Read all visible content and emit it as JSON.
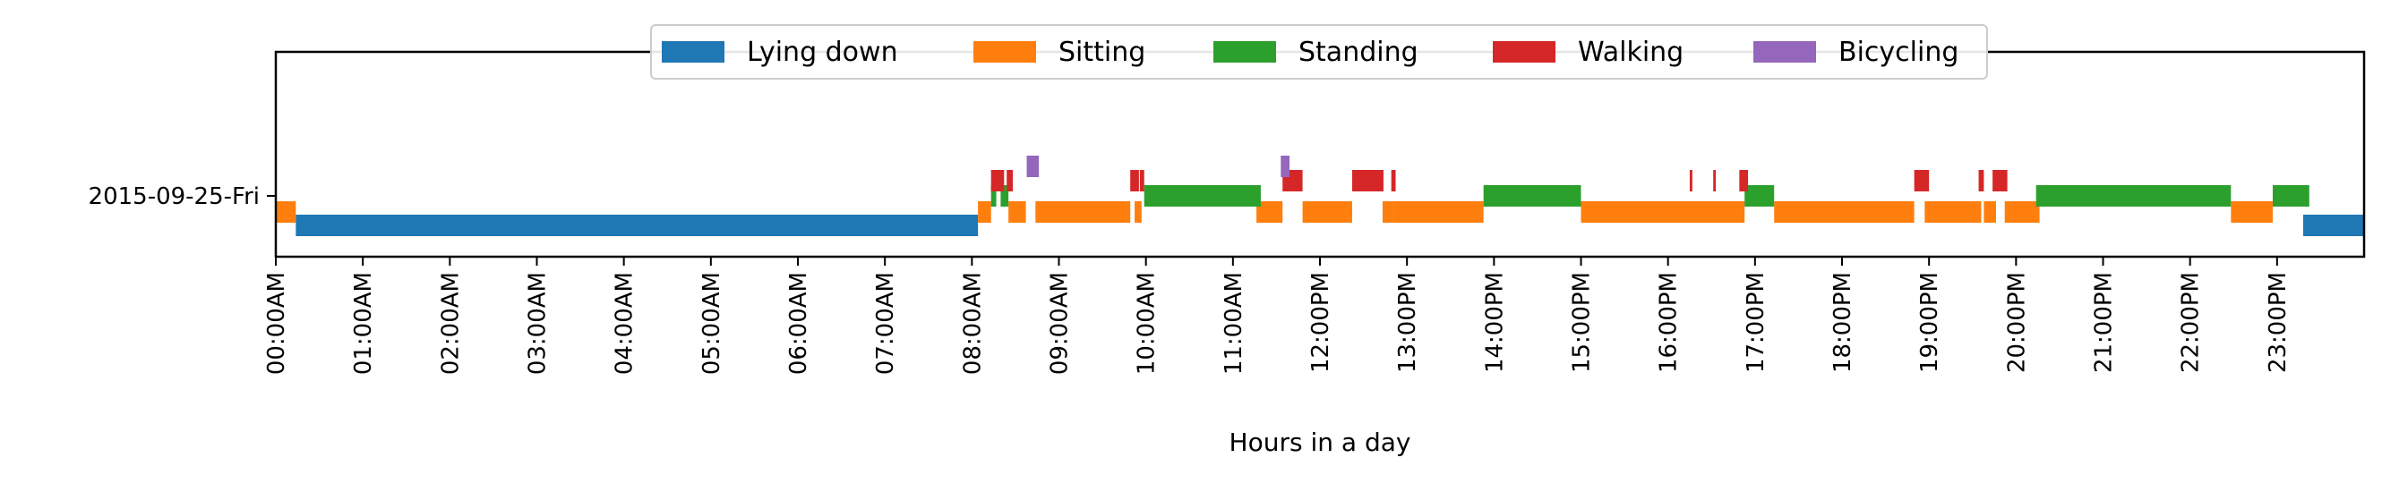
{
  "chart_data": {
    "type": "timeline",
    "xlabel": "Hours in a day",
    "ylabel": "",
    "xlim": [
      0,
      24
    ],
    "row_label": "2015-09-25-Fri",
    "x_ticks": [
      "00:00AM",
      "01:00AM",
      "02:00AM",
      "03:00AM",
      "04:00AM",
      "05:00AM",
      "06:00AM",
      "07:00AM",
      "08:00AM",
      "09:00AM",
      "10:00AM",
      "11:00AM",
      "12:00PM",
      "13:00PM",
      "14:00PM",
      "15:00PM",
      "16:00PM",
      "17:00PM",
      "18:00PM",
      "19:00PM",
      "20:00PM",
      "21:00PM",
      "22:00PM",
      "23:00PM"
    ],
    "legend_position": "top-center",
    "series": [
      {
        "name": "Lying down",
        "color": "#1f77b4",
        "intervals": [
          [
            0.23,
            8.07
          ],
          [
            23.3,
            24.0
          ]
        ]
      },
      {
        "name": "Sitting",
        "color": "#ff7f0e",
        "intervals": [
          [
            0.0,
            0.23
          ],
          [
            8.07,
            8.22
          ],
          [
            8.42,
            8.62
          ],
          [
            8.73,
            9.82
          ],
          [
            9.87,
            9.95
          ],
          [
            11.27,
            11.57
          ],
          [
            11.8,
            12.37
          ],
          [
            12.72,
            12.85
          ],
          [
            12.85,
            13.88
          ],
          [
            15.0,
            16.88
          ],
          [
            17.22,
            18.83
          ],
          [
            18.95,
            19.6
          ],
          [
            19.63,
            19.77
          ],
          [
            19.87,
            20.27
          ],
          [
            22.47,
            22.95
          ]
        ]
      },
      {
        "name": "Standing",
        "color": "#2ca02c",
        "intervals": [
          [
            8.22,
            8.28
          ],
          [
            8.33,
            8.42
          ],
          [
            9.98,
            11.32
          ],
          [
            13.88,
            15.0
          ],
          [
            16.88,
            17.22
          ],
          [
            20.23,
            22.47
          ],
          [
            22.95,
            23.37
          ]
        ]
      },
      {
        "name": "Walking",
        "color": "#d62728",
        "intervals": [
          [
            8.22,
            8.37
          ],
          [
            8.4,
            8.47
          ],
          [
            9.82,
            9.92
          ],
          [
            9.93,
            9.98
          ],
          [
            11.57,
            11.8
          ],
          [
            12.37,
            12.73
          ],
          [
            12.82,
            12.87
          ],
          [
            16.25,
            16.28
          ],
          [
            16.52,
            16.55
          ],
          [
            16.82,
            16.92
          ],
          [
            18.83,
            19.0
          ],
          [
            19.57,
            19.63
          ],
          [
            19.73,
            19.9
          ]
        ]
      },
      {
        "name": "Bicycling",
        "color": "#9467bd",
        "intervals": [
          [
            8.63,
            8.77
          ],
          [
            11.55,
            11.65
          ]
        ]
      }
    ]
  }
}
